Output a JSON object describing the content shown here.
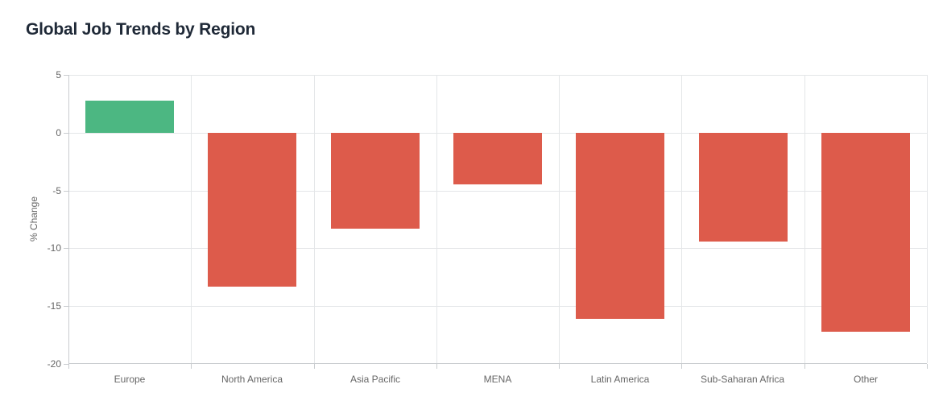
{
  "title": "Global Job Trends by Region",
  "chart_data": {
    "type": "bar",
    "title": "Global Job Trends by Region",
    "categories": [
      "Europe",
      "North America",
      "Asia Pacific",
      "MENA",
      "Latin America",
      "Sub-Saharan Africa",
      "Other"
    ],
    "values": [
      2.8,
      -13.3,
      -8.3,
      -4.5,
      -16.1,
      -9.4,
      -17.2
    ],
    "xlabel": "",
    "ylabel": "% Change",
    "ylim": [
      -20,
      5
    ],
    "yticks": [
      5,
      0,
      -5,
      -10,
      -15,
      -20
    ],
    "grid": true,
    "legend": false,
    "gridlines_between_categories": true,
    "bar_colors": {
      "positive": "#4cb782",
      "negative": "#dd5b4b"
    }
  },
  "style": {
    "title_color": "#1f2937",
    "axis_label_color": "#666666",
    "grid_color": "#e4e6e8",
    "axis_line_color": "#c9cccf",
    "background": "#ffffff"
  }
}
